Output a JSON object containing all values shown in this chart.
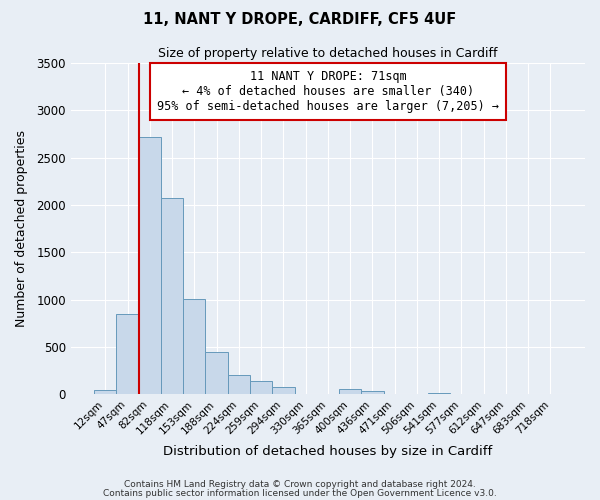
{
  "title_line1": "11, NANT Y DROPE, CARDIFF, CF5 4UF",
  "title_line2": "Size of property relative to detached houses in Cardiff",
  "xlabel": "Distribution of detached houses by size in Cardiff",
  "ylabel": "Number of detached properties",
  "bar_labels": [
    "12sqm",
    "47sqm",
    "82sqm",
    "118sqm",
    "153sqm",
    "188sqm",
    "224sqm",
    "259sqm",
    "294sqm",
    "330sqm",
    "365sqm",
    "400sqm",
    "436sqm",
    "471sqm",
    "506sqm",
    "541sqm",
    "577sqm",
    "612sqm",
    "647sqm",
    "683sqm",
    "718sqm"
  ],
  "bar_values": [
    50,
    850,
    2720,
    2070,
    1010,
    450,
    210,
    145,
    80,
    0,
    0,
    55,
    35,
    0,
    0,
    20,
    0,
    0,
    0,
    0,
    0
  ],
  "bar_color": "#c8d8ea",
  "bar_edge_color": "#6699bb",
  "vline_color": "#cc0000",
  "ylim": [
    0,
    3500
  ],
  "yticks": [
    0,
    500,
    1000,
    1500,
    2000,
    2500,
    3000,
    3500
  ],
  "annotation_title": "11 NANT Y DROPE: 71sqm",
  "annotation_line2": "← 4% of detached houses are smaller (340)",
  "annotation_line3": "95% of semi-detached houses are larger (7,205) →",
  "annotation_box_color": "#cc0000",
  "footer_line1": "Contains HM Land Registry data © Crown copyright and database right 2024.",
  "footer_line2": "Contains public sector information licensed under the Open Government Licence v3.0.",
  "bg_color": "#e8eef5",
  "grid_color": "#ffffff"
}
